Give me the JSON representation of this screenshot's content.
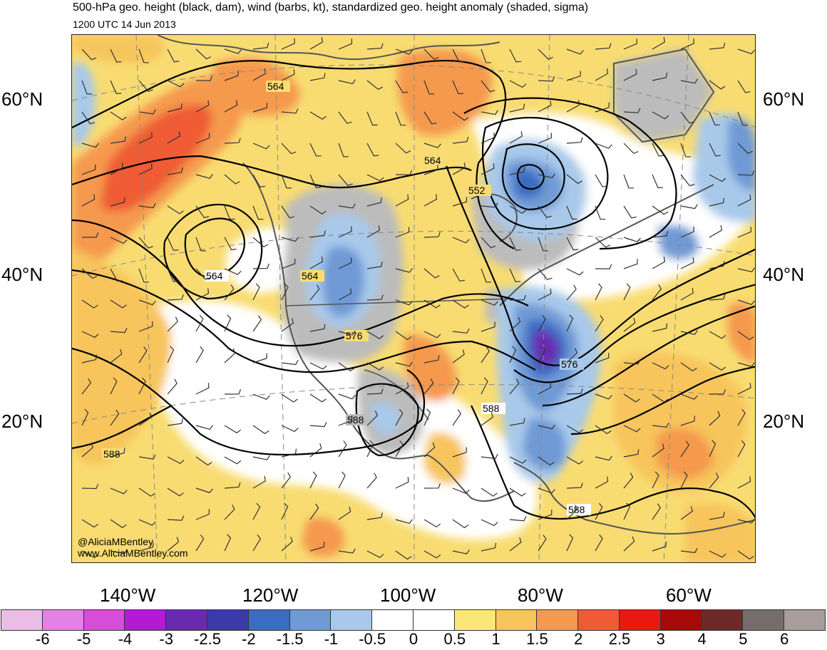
{
  "title": {
    "line1": "500-hPa geo. height (black, dam), wind (barbs, kt), standardized geo. height anomaly (shaded, sigma)",
    "line2": "1200 UTC 14 Jun 2013"
  },
  "map": {
    "lat_labels": [
      "60°N",
      "40°N",
      "20°N"
    ],
    "lon_labels": [
      "140°W",
      "120°W",
      "100°W",
      "80°W",
      "60°W"
    ],
    "contour_labels": [
      "564",
      "564",
      "564",
      "564",
      "552",
      "576",
      "576",
      "588",
      "588",
      "588",
      "588"
    ],
    "credit_handle": "@AliciaMBentley",
    "credit_site": "www.AliciaMBentley.com"
  },
  "colorbar": {
    "colors": [
      "#ebbde6",
      "#e580e6",
      "#d64cdb",
      "#b21ad4",
      "#6a2ab0",
      "#3a3aa8",
      "#3b6cc4",
      "#6f9ad6",
      "#a8c9ea",
      "#ffffff",
      "#ffffff",
      "#fbe777",
      "#f7c55c",
      "#f5994e",
      "#ef5b34",
      "#e81a10",
      "#a80a0a",
      "#6e2a28",
      "#776c6c",
      "#a89c9c"
    ],
    "labels": [
      "-6",
      "-5",
      "-4",
      "-3",
      "-2.5",
      "-2",
      "-1.5",
      "-1",
      "-0.5",
      "0",
      "0.5",
      "1",
      "1.5",
      "2",
      "2.5",
      "3",
      "4",
      "5",
      "6"
    ]
  }
}
